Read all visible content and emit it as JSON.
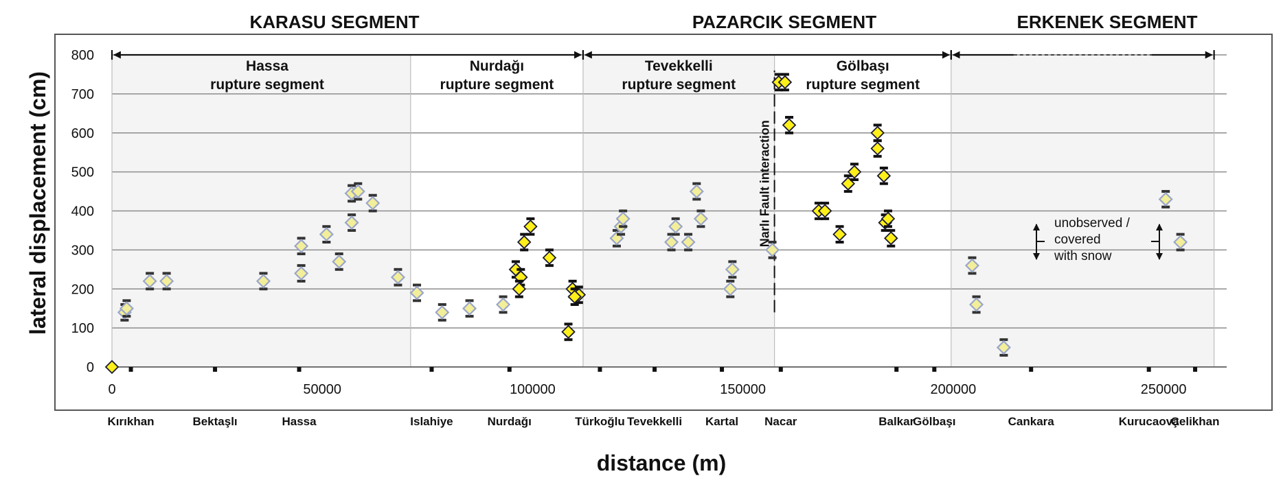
{
  "chart_data": {
    "type": "scatter",
    "xlabel": "distance (m)",
    "ylabel": "lateral displacement (cm)",
    "xlim": [
      0,
      265000
    ],
    "ylim": [
      0,
      800
    ],
    "x_ticks": [
      0,
      50000,
      100000,
      150000,
      200000,
      250000
    ],
    "x_tick_labels": [
      "0",
      "50000",
      "100000",
      "150000",
      "200000",
      "250000"
    ],
    "y_ticks": [
      0,
      100,
      200,
      300,
      400,
      500,
      600,
      700,
      800
    ],
    "y_tick_labels": [
      "0",
      "100",
      "200",
      "300",
      "400",
      "500",
      "600",
      "700",
      "800"
    ],
    "grid": "horizontal",
    "fault_segments": [
      {
        "label": "KARASU SEGMENT",
        "start": 0,
        "end": 112000
      },
      {
        "label": "PAZARCIK SEGMENT",
        "start": 112000,
        "end": 199500
      },
      {
        "label": "ERKENEK SEGMENT",
        "start": 199500,
        "end": 262000
      }
    ],
    "rupture_segments": [
      {
        "line1": "Hassa",
        "line2": "rupture segment",
        "start": 0,
        "end": 71000,
        "shaded": true
      },
      {
        "line1": "Nurdağı",
        "line2": "rupture segment",
        "start": 71000,
        "end": 112000,
        "shaded": false
      },
      {
        "line1": "Tevekkelli",
        "line2": "rupture segment",
        "start": 112000,
        "end": 157500,
        "shaded": true
      },
      {
        "line1": "Gölbaşı",
        "line2": "rupture segment",
        "start": 157500,
        "end": 199500,
        "shaded": false
      },
      {
        "line1": "",
        "line2": "",
        "start": 199500,
        "end": 262000,
        "shaded": true
      }
    ],
    "towns": [
      {
        "name": "Kırıkhan",
        "x": 4500
      },
      {
        "name": "Bektaşlı",
        "x": 24500
      },
      {
        "name": "Hassa",
        "x": 44500
      },
      {
        "name": "Islahiye",
        "x": 76000
      },
      {
        "name": "Nurdağı",
        "x": 94500
      },
      {
        "name": "Türkoğlu",
        "x": 116000
      },
      {
        "name": "Tevekkelli",
        "x": 129000
      },
      {
        "name": "Kartal",
        "x": 145000
      },
      {
        "name": "Nacar",
        "x": 159000
      },
      {
        "name": "Balkar",
        "x": 186500
      },
      {
        "name": "Gölbaşı",
        "x": 195500
      },
      {
        "name": "Cankara",
        "x": 218500
      },
      {
        "name": "Kurucaova",
        "x": 246500
      },
      {
        "name": "Çelikhan",
        "x": 257500
      }
    ],
    "fault_interaction": {
      "label": "Narlı Fault interaction",
      "x": 157500,
      "y_from": 140,
      "y_to": 760
    },
    "annotation": {
      "lines": [
        "unobserved /",
        "covered",
        "with snow"
      ]
    },
    "series": [
      {
        "marker": "yellow-diamond-dark-outline",
        "points": [
          {
            "x": 0,
            "y": 0
          },
          {
            "x": 96000,
            "y": 250
          },
          {
            "x": 97200,
            "y": 230
          },
          {
            "x": 96800,
            "y": 200
          },
          {
            "x": 98000,
            "y": 320
          },
          {
            "x": 99500,
            "y": 360
          },
          {
            "x": 104000,
            "y": 280
          },
          {
            "x": 108500,
            "y": 90
          },
          {
            "x": 109500,
            "y": 200
          },
          {
            "x": 111000,
            "y": 185
          },
          {
            "x": 110000,
            "y": 180
          },
          {
            "x": 158500,
            "y": 730
          },
          {
            "x": 160000,
            "y": 730
          },
          {
            "x": 161000,
            "y": 620
          },
          {
            "x": 168000,
            "y": 400
          },
          {
            "x": 169500,
            "y": 400
          },
          {
            "x": 173000,
            "y": 340
          },
          {
            "x": 175000,
            "y": 470
          },
          {
            "x": 176500,
            "y": 500
          },
          {
            "x": 182000,
            "y": 600
          },
          {
            "x": 182000,
            "y": 560
          },
          {
            "x": 183500,
            "y": 490
          },
          {
            "x": 183800,
            "y": 370
          },
          {
            "x": 184500,
            "y": 380
          },
          {
            "x": 185200,
            "y": 330
          }
        ]
      },
      {
        "marker": "pale-diamond-light-outline",
        "points": [
          {
            "x": 3000,
            "y": 140
          },
          {
            "x": 3500,
            "y": 150
          },
          {
            "x": 9000,
            "y": 220
          },
          {
            "x": 13000,
            "y": 220
          },
          {
            "x": 36000,
            "y": 220
          },
          {
            "x": 45000,
            "y": 310
          },
          {
            "x": 45000,
            "y": 240
          },
          {
            "x": 51000,
            "y": 340
          },
          {
            "x": 54000,
            "y": 270
          },
          {
            "x": 57000,
            "y": 370
          },
          {
            "x": 57000,
            "y": 445
          },
          {
            "x": 58500,
            "y": 450
          },
          {
            "x": 62000,
            "y": 420
          },
          {
            "x": 68000,
            "y": 230
          },
          {
            "x": 72500,
            "y": 190
          },
          {
            "x": 78500,
            "y": 140
          },
          {
            "x": 85000,
            "y": 150
          },
          {
            "x": 93000,
            "y": 160
          },
          {
            "x": 120000,
            "y": 330
          },
          {
            "x": 121000,
            "y": 360
          },
          {
            "x": 121500,
            "y": 380
          },
          {
            "x": 133000,
            "y": 320
          },
          {
            "x": 134000,
            "y": 360
          },
          {
            "x": 137000,
            "y": 320
          },
          {
            "x": 139000,
            "y": 450
          },
          {
            "x": 140000,
            "y": 380
          },
          {
            "x": 147000,
            "y": 200
          },
          {
            "x": 147500,
            "y": 250
          },
          {
            "x": 157000,
            "y": 300
          },
          {
            "x": 204500,
            "y": 260
          },
          {
            "x": 205500,
            "y": 160
          },
          {
            "x": 212000,
            "y": 50
          },
          {
            "x": 250500,
            "y": 430
          },
          {
            "x": 254000,
            "y": 320
          }
        ]
      }
    ]
  }
}
